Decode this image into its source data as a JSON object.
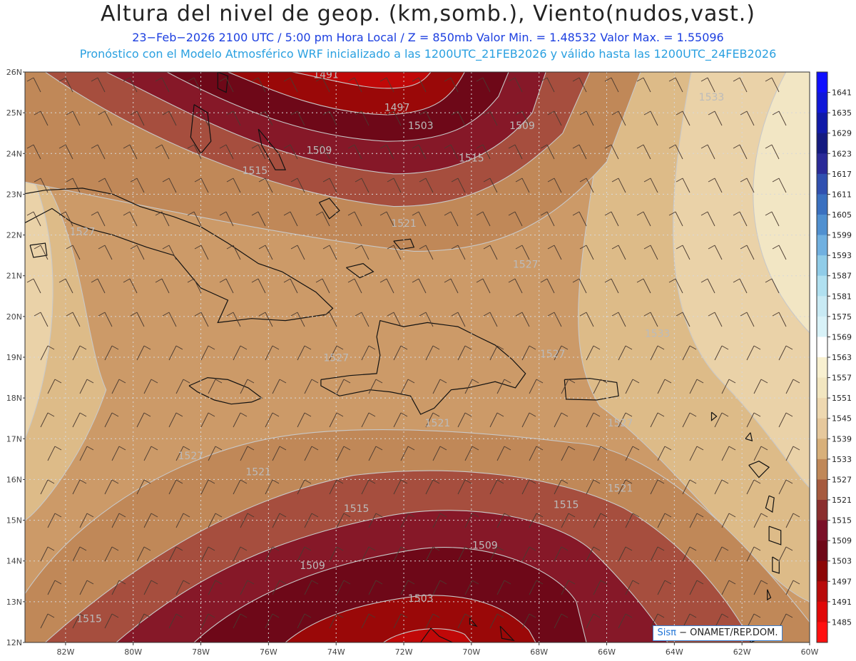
{
  "header": {
    "title": "Altura del nivel de geop. (km,somb.), Viento(nudos,vast.)",
    "subtitle_line1": "23−Feb−2026  2100 UTC / 5:00 pm Hora Local / Z = 850mb     Valor Min. = 1.48532  Valor Max. = 1.55096",
    "subtitle_line2": "Pronóstico con el Modelo Atmosférico WRF inicializado a las 1200UTC_21FEB2026 y válido hasta las  1200UTC_24FEB2026"
  },
  "axes": {
    "lon_labels": [
      "82W",
      "80W",
      "78W",
      "76W",
      "74W",
      "72W",
      "70W",
      "68W",
      "66W",
      "64W",
      "62W",
      "60W"
    ],
    "lat_labels": [
      "26N",
      "25N",
      "24N",
      "23N",
      "22N",
      "21N",
      "20N",
      "19N",
      "18N",
      "17N",
      "16N",
      "15N",
      "14N",
      "13N",
      "12N"
    ]
  },
  "contour_labels": [
    {
      "text": "1491",
      "lon": -74.3,
      "lat": 25.85
    },
    {
      "text": "1497",
      "lon": -72.2,
      "lat": 25.05
    },
    {
      "text": "1503",
      "lon": -71.5,
      "lat": 24.6
    },
    {
      "text": "1509",
      "lon": -68.5,
      "lat": 24.6
    },
    {
      "text": "1509",
      "lon": -74.5,
      "lat": 24.0
    },
    {
      "text": "1515",
      "lon": -70.0,
      "lat": 23.8
    },
    {
      "text": "1515",
      "lon": -76.4,
      "lat": 23.5
    },
    {
      "text": "1521",
      "lon": -72.0,
      "lat": 22.2
    },
    {
      "text": "1527",
      "lon": -81.5,
      "lat": 22.0
    },
    {
      "text": "1527",
      "lon": -68.4,
      "lat": 21.2
    },
    {
      "text": "1533",
      "lon": -62.9,
      "lat": 25.3
    },
    {
      "text": "1533",
      "lon": -64.5,
      "lat": 19.5
    },
    {
      "text": "1527",
      "lon": -74.0,
      "lat": 18.9
    },
    {
      "text": "1527",
      "lon": -67.6,
      "lat": 19.0
    },
    {
      "text": "1521",
      "lon": -71.0,
      "lat": 17.3
    },
    {
      "text": "1527",
      "lon": -65.6,
      "lat": 17.3
    },
    {
      "text": "1527",
      "lon": -78.3,
      "lat": 16.5
    },
    {
      "text": "1521",
      "lon": -76.3,
      "lat": 16.1
    },
    {
      "text": "1521",
      "lon": -65.6,
      "lat": 15.7
    },
    {
      "text": "1515",
      "lon": -73.4,
      "lat": 15.2
    },
    {
      "text": "1515",
      "lon": -67.2,
      "lat": 15.3
    },
    {
      "text": "1509",
      "lon": -69.6,
      "lat": 14.3
    },
    {
      "text": "1509",
      "lon": -74.7,
      "lat": 13.8
    },
    {
      "text": "1503",
      "lon": -71.5,
      "lat": 13.0
    },
    {
      "text": "1515",
      "lon": -81.3,
      "lat": 12.5
    }
  ],
  "colorbar": {
    "levels": [
      "1641",
      "1635",
      "1629",
      "1623",
      "1617",
      "1611",
      "1605",
      "1599",
      "1593",
      "1587",
      "1581",
      "1575",
      "1569",
      "1563",
      "1557",
      "1551",
      "1545",
      "1539",
      "1533",
      "1527",
      "1521",
      "1515",
      "1509",
      "1503",
      "1497",
      "1491",
      "1485"
    ],
    "colors": [
      "#1010ff",
      "#1018d8",
      "#101aa8",
      "#141a80",
      "#2a2a98",
      "#3050b0",
      "#3a70c0",
      "#5090d0",
      "#70b0e0",
      "#90cce8",
      "#b0e0f0",
      "#c8eaf4",
      "#d8f2f8",
      "#ffffff",
      "#f8f0d0",
      "#f2e6c0",
      "#eed8b0",
      "#e6c89c",
      "#d8b07a",
      "#c08858",
      "#a65a3e",
      "#8a2e2e",
      "#7a1028",
      "#6e0818",
      "#8c0606",
      "#b80a0a",
      "#e00808",
      "#ff1010"
    ]
  },
  "map": {
    "field_colors": {
      "1485": "#e00808",
      "1491": "#c00808",
      "1497": "#9a0808",
      "1503": "#6e0818",
      "1509": "#861828",
      "1515": "#a64e3e",
      "1521": "#c08858",
      "1527": "#cc9a68",
      "1533": "#ddbb88",
      "1539": "#ead2a8",
      "1545": "#f2e6c4"
    }
  },
  "credit": {
    "brand": "Sisπ",
    "text": " − ONAMET/REP.DOM."
  }
}
